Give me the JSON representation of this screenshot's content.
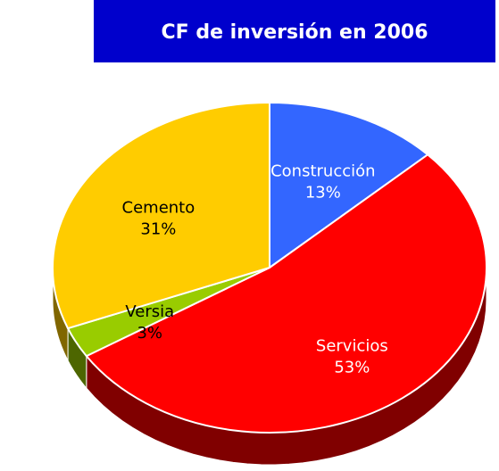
{
  "chart_data": {
    "type": "pie",
    "title": "CF de inversión en 2006",
    "categories": [
      "Construcción",
      "Servicios",
      "Versia",
      "Cemento"
    ],
    "values": [
      13,
      53,
      3,
      31
    ],
    "value_labels": [
      "13%",
      "53%",
      "3%",
      "31%"
    ],
    "colors": [
      "#3366ff",
      "#ff0000",
      "#99cc00",
      "#ffcc00"
    ],
    "side_colors": [
      "#1a3380",
      "#800000",
      "#4d6600",
      "#806600"
    ]
  }
}
